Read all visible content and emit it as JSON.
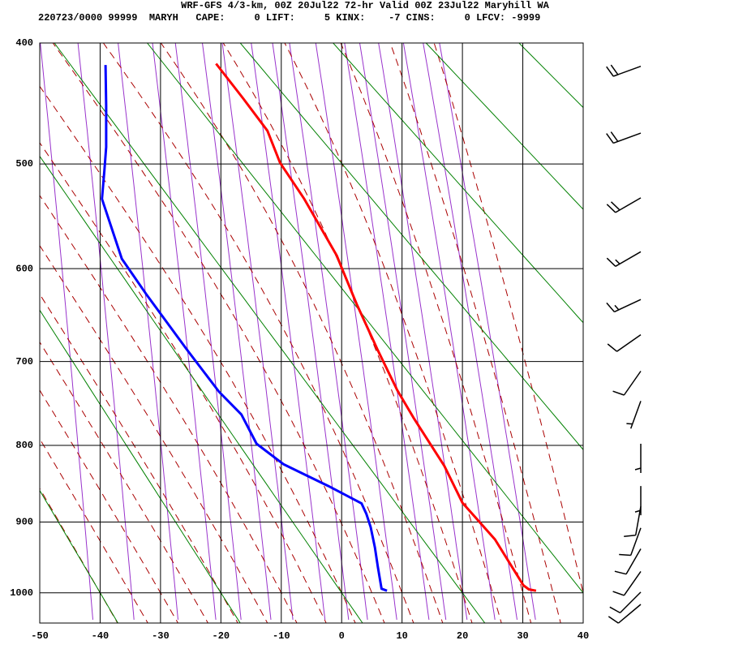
{
  "chart_data": {
    "type": "sounding",
    "title": "WRF-GFS 4/3-km, 00Z 20Jul22 72-hr Valid 00Z 23Jul22 Maryhill WA",
    "subtitle": "220723/0000 99999  MARYH   CAPE:     0 LIFT:     5 KINX:    -7 CINS:     0 LFCV: -9999",
    "xlim": [
      -50,
      40
    ],
    "xticks": [
      -50,
      -40,
      -30,
      -20,
      -10,
      0,
      10,
      20,
      30,
      40
    ],
    "ylim": [
      400,
      1045
    ],
    "yticks": [
      400,
      500,
      600,
      700,
      800,
      900,
      1000
    ],
    "y_exponent": 0.286,
    "grid": true,
    "series": [
      {
        "color": "#ff0000",
        "x": [
          -20.8,
          -16.3,
          -12.3,
          -10.2,
          -6.2,
          -0.8,
          0.0,
          2.5,
          5.9,
          9.2,
          11.9,
          17.0,
          20.0,
          25.4,
          30.1,
          31.0,
          32.2
        ],
        "y": [
          416,
          444,
          471,
          499,
          532,
          587,
          599,
          637,
          686,
          733,
          766,
          826,
          874,
          924,
          989,
          995,
          997
        ]
      },
      {
        "color": "#0000ff",
        "x": [
          -39.1,
          -39.0,
          -39.0,
          -39.3,
          -39.7,
          -36.4,
          -32.4,
          -25.7,
          -20.3,
          -16.6,
          -14.1,
          -9.6,
          -2.2,
          3.3,
          4.1,
          4.8,
          5.5,
          6.0,
          6.6,
          7.5
        ],
        "y": [
          417,
          450,
          485,
          506,
          532,
          590,
          626,
          686,
          735,
          762,
          798,
          824,
          852,
          875,
          889,
          907,
          935,
          963,
          994,
          997
        ]
      }
    ],
    "wind": {
      "pressure": [
        418,
        473,
        531,
        583,
        632,
        670,
        711,
        746,
        798,
        852,
        879,
        908,
        937,
        969,
        999,
        1017
      ],
      "direction": [
        250,
        250,
        240,
        240,
        245,
        235,
        215,
        200,
        180,
        180,
        190,
        200,
        210,
        215,
        225,
        230
      ],
      "speed": [
        20,
        20,
        20,
        15,
        15,
        10,
        10,
        5,
        5,
        5,
        10,
        10,
        10,
        10,
        10,
        10
      ]
    }
  }
}
